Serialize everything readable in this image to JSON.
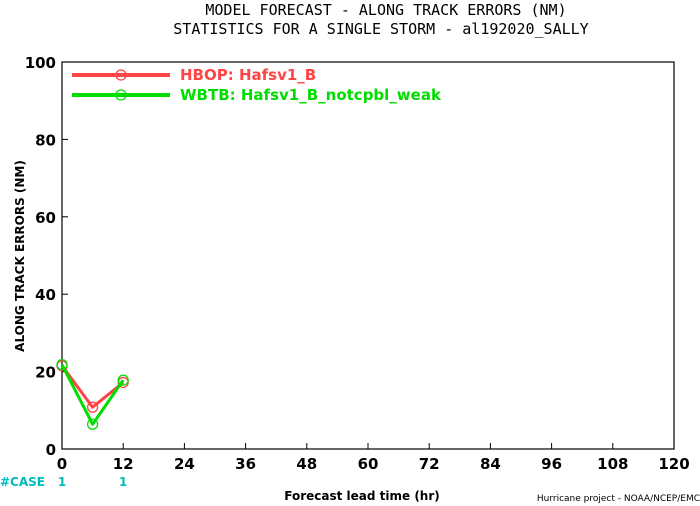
{
  "chart_data": {
    "type": "line",
    "title": "MODEL FORECAST - ALONG TRACK ERRORS (NM)",
    "subtitle": "STATISTICS FOR A SINGLE STORM - al192020_SALLY",
    "xlabel": "Forecast lead time (hr)",
    "ylabel": "ALONG TRACK ERRORS (NM)",
    "xlim": [
      0,
      120
    ],
    "ylim": [
      0,
      100
    ],
    "x_ticks": [
      "0",
      "12",
      "24",
      "36",
      "48",
      "60",
      "72",
      "84",
      "96",
      "108",
      "120"
    ],
    "y_ticks": [
      "0",
      "20",
      "40",
      "60",
      "80",
      "100"
    ],
    "grid": false,
    "legend_position": "top-left",
    "series": [
      {
        "name": "HBOP: Hafsv1_B",
        "color": "#ff4444",
        "x": [
          0,
          6,
          12
        ],
        "y": [
          21.5,
          10.8,
          17.2
        ]
      },
      {
        "name": "WBTB: Hafsv1_B_notcpbl_weak",
        "color": "#00dd00",
        "x": [
          0,
          6,
          12
        ],
        "y": [
          21.8,
          6.4,
          17.8
        ]
      }
    ],
    "case_label": "#CASE",
    "case_counts": [
      {
        "x": 0,
        "label": "1"
      },
      {
        "x": 12,
        "label": "1"
      }
    ],
    "case_color": "#00bbbb",
    "footer": "Hurricane project - NOAA/NCEP/EMC"
  }
}
